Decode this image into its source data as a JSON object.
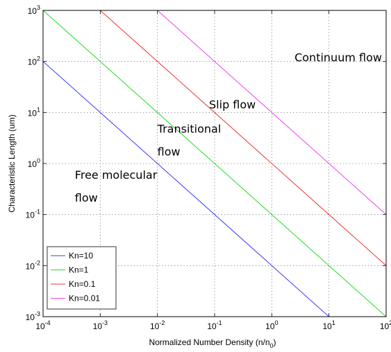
{
  "chart_data": {
    "type": "line",
    "xscale": "log",
    "yscale": "log",
    "xlim": [
      0.0001,
      100
    ],
    "ylim": [
      0.001,
      1000
    ],
    "grid": true,
    "legend_position": "bottom-left",
    "xlabel_text": "Normalized Number Density (n/n",
    "xlabel_sub": "0",
    "xlabel_end": ")",
    "ylabel": "Characteristic Length (um)",
    "x_ticks": [
      {
        "value": 0.0001,
        "base": "10",
        "exp": "-4"
      },
      {
        "value": 0.001,
        "base": "10",
        "exp": "-3"
      },
      {
        "value": 0.01,
        "base": "10",
        "exp": "-2"
      },
      {
        "value": 0.1,
        "base": "10",
        "exp": "-1"
      },
      {
        "value": 1,
        "base": "10",
        "exp": "0"
      },
      {
        "value": 10,
        "base": "10",
        "exp": "1"
      },
      {
        "value": 100,
        "base": "10",
        "exp": "2"
      }
    ],
    "y_ticks": [
      {
        "value": 0.001,
        "base": "10",
        "exp": "-3"
      },
      {
        "value": 0.01,
        "base": "10",
        "exp": "-2"
      },
      {
        "value": 0.1,
        "base": "10",
        "exp": "-1"
      },
      {
        "value": 1,
        "base": "10",
        "exp": "0"
      },
      {
        "value": 10,
        "base": "10",
        "exp": "1"
      },
      {
        "value": 100,
        "base": "10",
        "exp": "2"
      },
      {
        "value": 1000,
        "base": "10",
        "exp": "3"
      }
    ],
    "series": [
      {
        "name": "Kn=10",
        "color": "#3a3aff",
        "x": [
          0.0001,
          10
        ],
        "y": [
          100,
          0.001
        ]
      },
      {
        "name": "Kn=1",
        "color": "#22dd22",
        "x": [
          0.0001,
          100
        ],
        "y": [
          1000,
          0.001
        ]
      },
      {
        "name": "Kn=0.1",
        "color": "#ee3333",
        "x": [
          0.001,
          100
        ],
        "y": [
          1000,
          0.01
        ]
      },
      {
        "name": "Kn=0.01",
        "color": "#ee44ee",
        "x": [
          0.01,
          100
        ],
        "y": [
          1000,
          0.1
        ]
      }
    ],
    "annotations": [
      {
        "lines": [
          "Continuum flow"
        ],
        "x": 2.5,
        "y": 100
      },
      {
        "lines": [
          "Slip flow"
        ],
        "x": 0.08,
        "y": 12
      },
      {
        "lines": [
          "Transitional",
          "flow"
        ],
        "x": 0.01,
        "y": 4
      },
      {
        "lines": [
          "Free molecular",
          "flow"
        ],
        "x": 0.00036,
        "y": 0.5
      }
    ]
  }
}
